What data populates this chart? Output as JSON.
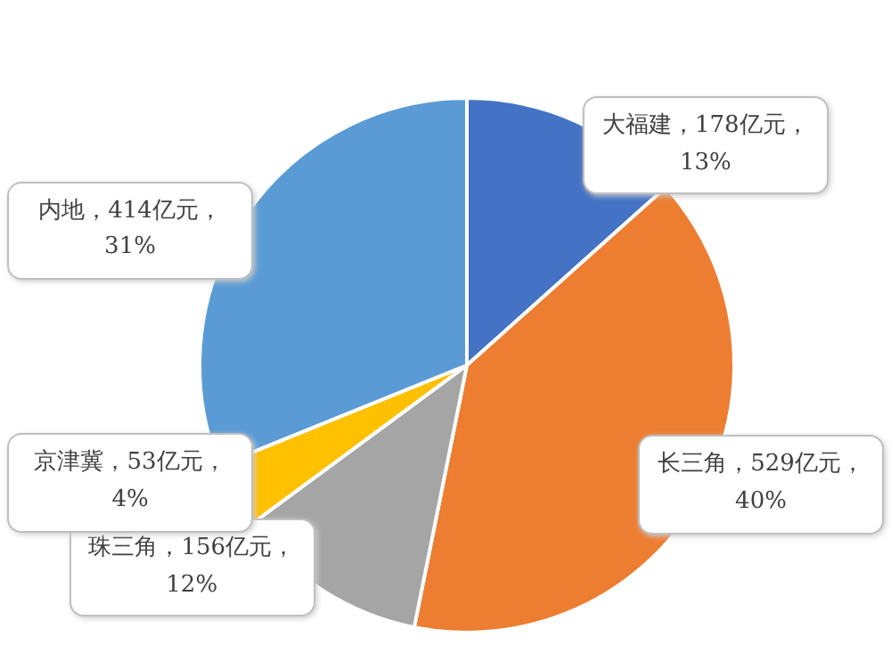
{
  "chart_data": {
    "type": "pie",
    "categories": [
      "大福建",
      "长三角",
      "珠三角",
      "京津冀",
      "内地"
    ],
    "values": [
      178,
      529,
      156,
      53,
      414
    ],
    "value_labels": [
      "178亿元，13%",
      "529亿元，40%",
      "156亿元，12%",
      "53亿元，4%",
      "414亿元，31%"
    ],
    "colors": [
      "#4472c4",
      "#ed7d31",
      "#a5a5a5",
      "#ffc000",
      "#5b9bd5"
    ]
  }
}
